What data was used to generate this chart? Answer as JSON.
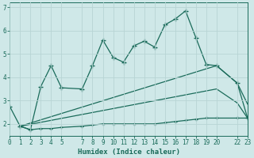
{
  "xlabel": "Humidex (Indice chaleur)",
  "xlim": [
    0,
    23
  ],
  "ylim": [
    1.5,
    7.2
  ],
  "yticks": [
    2,
    3,
    4,
    5,
    6,
    7
  ],
  "xtick_positions": [
    0,
    1,
    2,
    3,
    4,
    5,
    7,
    8,
    9,
    10,
    11,
    12,
    13,
    14,
    15,
    16,
    17,
    18,
    19,
    20,
    22,
    23
  ],
  "bg_color": "#cfe8e8",
  "grid_color": "#b8d4d4",
  "line_color": "#1a6b5a",
  "line1_x": [
    0,
    1,
    2,
    3,
    4,
    5,
    7,
    8,
    9,
    10,
    11,
    12,
    13,
    14,
    15,
    16,
    17,
    18,
    19,
    20,
    22,
    23
  ],
  "line1_y": [
    2.75,
    1.9,
    1.75,
    3.6,
    4.5,
    3.55,
    3.5,
    4.5,
    5.6,
    4.85,
    4.65,
    5.35,
    5.55,
    5.3,
    6.25,
    6.5,
    6.85,
    5.7,
    4.55,
    4.5,
    3.75,
    2.25
  ],
  "line2_x": [
    1,
    2,
    3,
    4,
    5,
    7,
    8,
    9,
    10,
    11,
    12,
    13,
    14,
    15,
    16,
    17,
    18,
    19,
    20,
    22,
    23
  ],
  "line2_y": [
    1.9,
    1.75,
    1.8,
    1.8,
    1.85,
    1.9,
    1.95,
    2.0,
    2.0,
    2.0,
    2.0,
    2.0,
    2.0,
    2.05,
    2.1,
    2.15,
    2.2,
    2.25,
    2.25,
    2.25,
    2.25
  ],
  "line3_x": [
    1,
    20,
    22,
    23
  ],
  "line3_y": [
    1.9,
    4.5,
    3.75,
    2.85
  ],
  "line4_x": [
    1,
    20,
    22,
    23
  ],
  "line4_y": [
    1.9,
    3.5,
    2.9,
    2.25
  ]
}
